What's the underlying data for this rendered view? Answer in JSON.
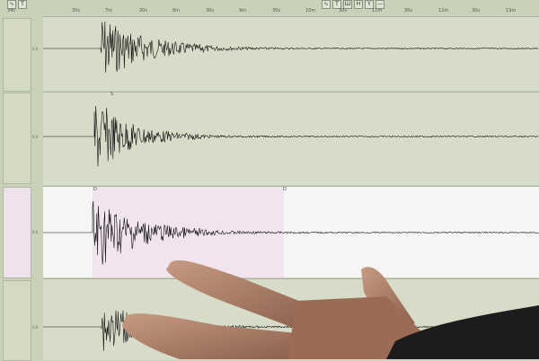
{
  "toolbar_left": [
    "∿",
    "T"
  ],
  "toolbar_right": [
    "∿",
    "T",
    "Ш",
    "H",
    "Y",
    "—"
  ],
  "axis_ticks": [
    "34s",
    "30s",
    "7m",
    "30s",
    "8m",
    "30s",
    "9m",
    "30s",
    "10m",
    "30s",
    "11m",
    "30s",
    "12m",
    "30s",
    "13m"
  ],
  "channel_labels": [
    "0.0",
    "0.0",
    "0.0",
    "0.0"
  ],
  "markers": [
    "S",
    "S",
    "D",
    "D"
  ],
  "colors": {
    "screen": "#d6dcc7",
    "highlight": "#f1e4ee",
    "white_panel": "#f5f5f5",
    "trace": "#111111",
    "skin": "#b88a72",
    "sleeve": "#1c1c1c"
  }
}
